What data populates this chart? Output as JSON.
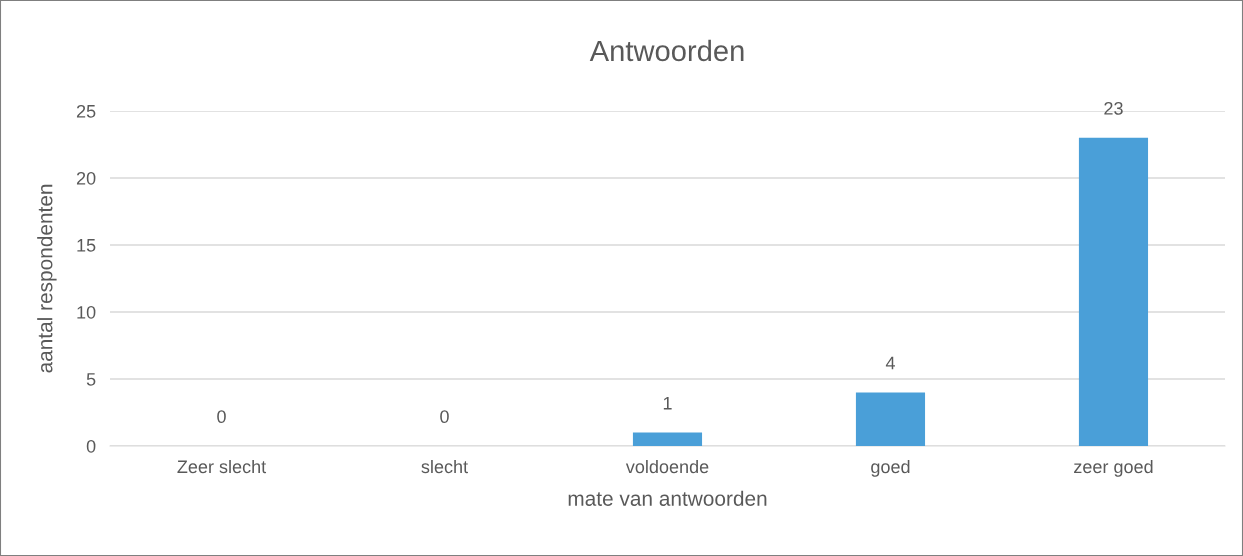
{
  "chart_data": {
    "type": "bar",
    "title": "Antwoorden",
    "xlabel": "mate van antwoorden",
    "ylabel": "aantal respondenten",
    "categories": [
      "Zeer slecht",
      "slecht",
      "voldoende",
      "goed",
      "zeer goed"
    ],
    "values": [
      0,
      0,
      1,
      4,
      23
    ],
    "color": "#4a9fd8",
    "ylim": [
      0,
      25
    ],
    "yticks": [
      0,
      5,
      10,
      15,
      20,
      25
    ],
    "grid": "y",
    "data_labels": true
  }
}
